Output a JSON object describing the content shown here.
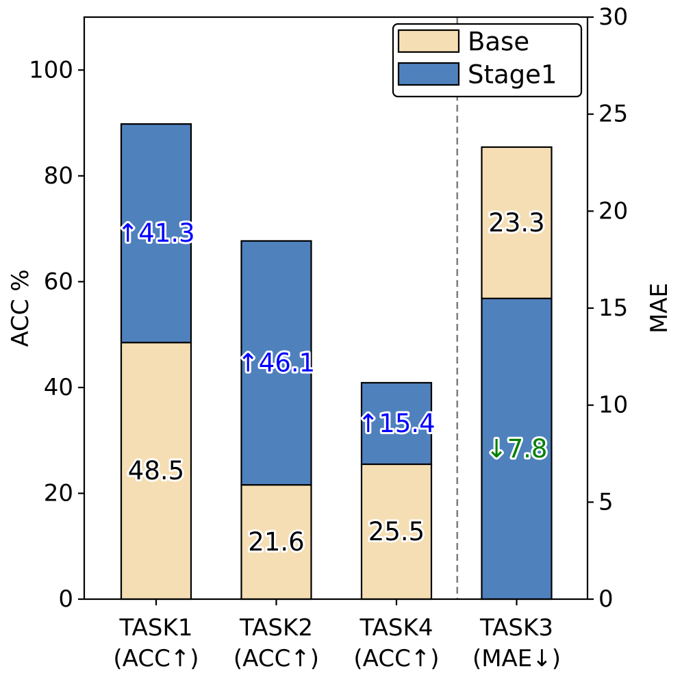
{
  "chart_data": {
    "type": "bar",
    "stacked": true,
    "categories": [
      {
        "name": "TASK1",
        "sub": "(ACC↑)"
      },
      {
        "name": "TASK2",
        "sub": "(ACC↑)"
      },
      {
        "name": "TASK4",
        "sub": "(ACC↑)"
      },
      {
        "name": "TASK3",
        "sub": "(MAE↓)"
      }
    ],
    "series": [
      {
        "name": "Base",
        "color": "#f5deb3"
      },
      {
        "name": "Stage1",
        "color": "#4f81bd"
      }
    ],
    "bars": [
      {
        "axis": "left",
        "segments": [
          {
            "series": "Base",
            "from": 0,
            "to": 48.5
          },
          {
            "series": "Stage1",
            "from": 48.5,
            "to": 89.8
          }
        ],
        "labels": [
          {
            "text": "48.5",
            "at": 24.25,
            "color": "#000000"
          },
          {
            "text": "↑41.3",
            "at": 69.15,
            "color": "#0000ff"
          }
        ]
      },
      {
        "axis": "left",
        "segments": [
          {
            "series": "Base",
            "from": 0,
            "to": 21.6
          },
          {
            "series": "Stage1",
            "from": 21.6,
            "to": 67.7
          }
        ],
        "labels": [
          {
            "text": "21.6",
            "at": 10.8,
            "color": "#000000"
          },
          {
            "text": "↑46.1",
            "at": 44.65,
            "color": "#0000ff"
          }
        ]
      },
      {
        "axis": "left",
        "segments": [
          {
            "series": "Base",
            "from": 0,
            "to": 25.5
          },
          {
            "series": "Stage1",
            "from": 25.5,
            "to": 40.9
          }
        ],
        "labels": [
          {
            "text": "25.5",
            "at": 12.75,
            "color": "#000000"
          },
          {
            "text": "↑15.4",
            "at": 33.2,
            "color": "#0000ff"
          }
        ]
      },
      {
        "axis": "right",
        "segments": [
          {
            "series": "Stage1",
            "from": 0,
            "to": 15.5
          },
          {
            "series": "Base",
            "from": 15.5,
            "to": 23.3
          }
        ],
        "labels": [
          {
            "text": "23.3",
            "at": 19.4,
            "color": "#000000"
          },
          {
            "text": "↓7.8",
            "at": 7.75,
            "color": "#008000"
          }
        ]
      }
    ],
    "y_left": {
      "label": "ACC %",
      "range": [
        0,
        110
      ],
      "ticks": [
        0,
        20,
        40,
        60,
        80,
        100
      ]
    },
    "y_right": {
      "label": "MAE",
      "range": [
        0,
        30
      ],
      "ticks": [
        0,
        5,
        10,
        15,
        20,
        25,
        30
      ]
    },
    "divider_after_category": 2,
    "legend": {
      "position": "top-right",
      "entries": [
        "Base",
        "Stage1"
      ]
    },
    "grid": false
  }
}
